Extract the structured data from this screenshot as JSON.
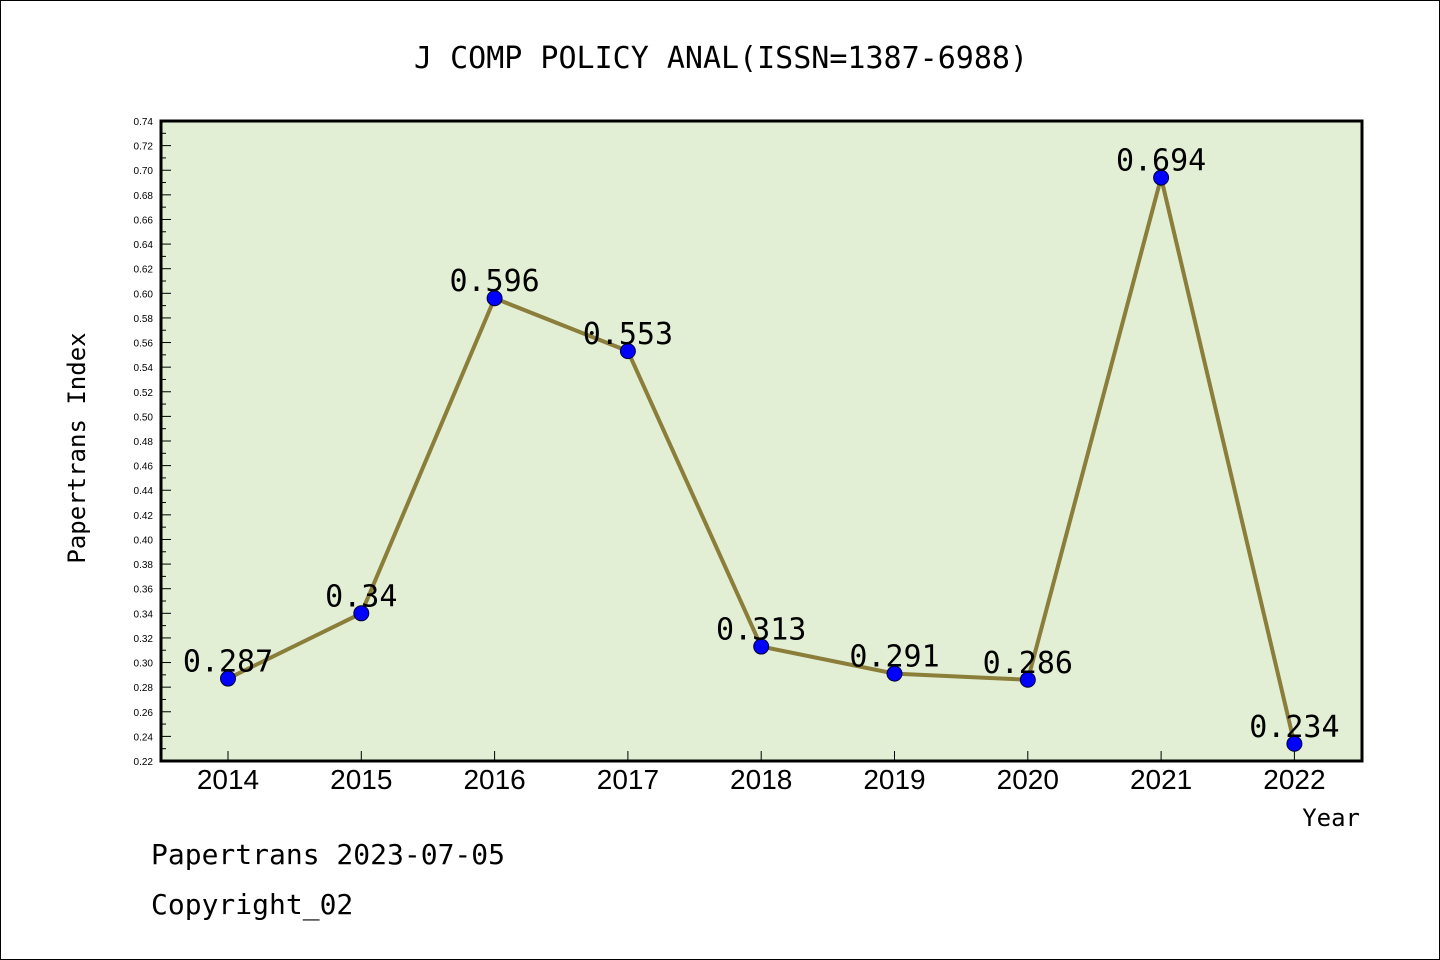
{
  "title": "J COMP POLICY ANAL(ISSN=1387-6988)",
  "footer": {
    "line1": "Papertrans 2023-07-05",
    "line2": "Copyright_02"
  },
  "colors": {
    "plot_background": "#e2efd4",
    "line": "#8b7d3a",
    "marker": "#0000ff"
  },
  "chart_data": {
    "type": "line",
    "title": "J COMP POLICY ANAL(ISSN=1387-6988)",
    "xlabel": "Year",
    "ylabel": "Papertrans Index",
    "categories": [
      "2014",
      "2015",
      "2016",
      "2017",
      "2018",
      "2019",
      "2020",
      "2021",
      "2022"
    ],
    "series": [
      {
        "values": [
          0.287,
          0.34,
          0.596,
          0.553,
          0.313,
          0.291,
          0.286,
          0.694,
          0.234
        ],
        "labels": [
          "0.287",
          "0.34",
          "0.596",
          "0.553",
          "0.313",
          "0.291",
          "0.286",
          "0.694",
          "0.234"
        ]
      }
    ],
    "ylim": [
      0.22,
      0.74
    ],
    "yticks": [
      "0.22",
      "0.24",
      "0.26",
      "0.28",
      "0.30",
      "0.32",
      "0.34",
      "0.36",
      "0.38",
      "0.40",
      "0.42",
      "0.44",
      "0.46",
      "0.48",
      "0.50",
      "0.52",
      "0.54",
      "0.56",
      "0.58",
      "0.60",
      "0.62",
      "0.64",
      "0.66",
      "0.68",
      "0.70",
      "0.72",
      "0.74"
    ],
    "grid": false,
    "legend": "none"
  }
}
